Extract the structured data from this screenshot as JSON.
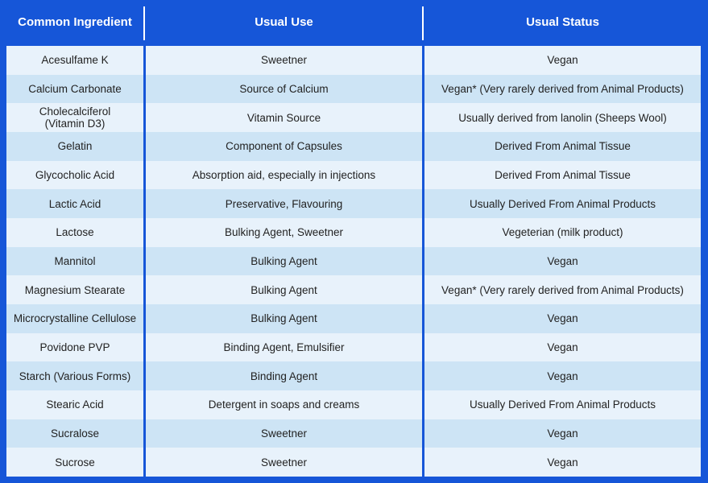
{
  "table": {
    "header": [
      "Common Ingredient",
      "Usual Use",
      "Usual Status"
    ],
    "rows": [
      [
        "Acesulfame K",
        "Sweetner",
        "Vegan"
      ],
      [
        "Calcium Carbonate",
        "Source of Calcium",
        "Vegan* (Very rarely derived from Animal Products)"
      ],
      [
        "Cholecalciferol\n(Vitamin D3)",
        "Vitamin Source",
        "Usually derived from lanolin (Sheeps Wool)"
      ],
      [
        "Gelatin",
        "Component of Capsules",
        "Derived From Animal Tissue"
      ],
      [
        "Glycocholic Acid",
        "Absorption aid, especially in injections",
        "Derived From Animal Tissue"
      ],
      [
        "Lactic Acid",
        "Preservative, Flavouring",
        "Usually Derived From Animal Products"
      ],
      [
        "Lactose",
        "Bulking Agent, Sweetner",
        "Vegeterian (milk product)"
      ],
      [
        "Mannitol",
        "Bulking Agent",
        "Vegan"
      ],
      [
        "Magnesium Stearate",
        "Bulking Agent",
        "Vegan* (Very rarely derived from Animal Products)"
      ],
      [
        "Microcrystalline Cellulose",
        "Bulking Agent",
        "Vegan"
      ],
      [
        "Povidone PVP",
        "Binding Agent, Emulsifier",
        "Vegan"
      ],
      [
        "Starch (Various Forms)",
        "Binding Agent",
        "Vegan"
      ],
      [
        "Stearic Acid",
        "Detergent in soaps and creams",
        "Usually Derived From Animal Products"
      ],
      [
        "Sucralose",
        "Sweetner",
        "Vegan"
      ],
      [
        "Sucrose",
        "Sweetner",
        "Vegan"
      ]
    ]
  }
}
